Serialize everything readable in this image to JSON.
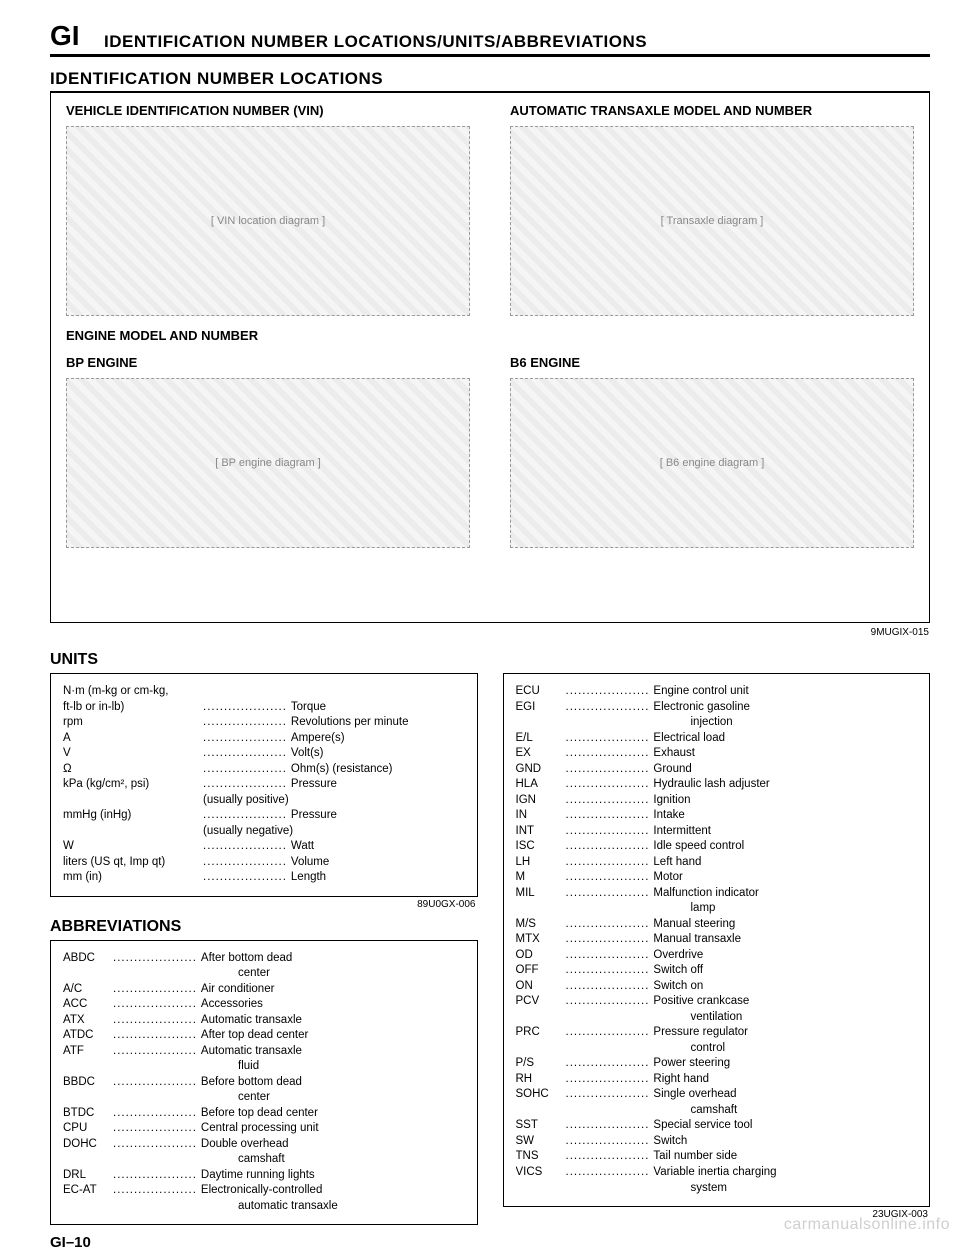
{
  "header": {
    "section_code": "GI",
    "title": "IDENTIFICATION NUMBER LOCATIONS/UNITS/ABBREVIATIONS",
    "subtitle": "IDENTIFICATION NUMBER LOCATIONS"
  },
  "diagram": {
    "vin_label": "VEHICLE IDENTIFICATION NUMBER (VIN)",
    "transaxle_label": "AUTOMATIC TRANSAXLE MODEL AND NUMBER",
    "engine_label": "ENGINE MODEL AND NUMBER",
    "bp_engine": "BP ENGINE",
    "b6_engine": "B6 ENGINE",
    "fig_code": "9MUGIX-015"
  },
  "units": {
    "title": "UNITS",
    "rows": [
      {
        "label": "N·m (m-kg or cm-kg,",
        "val": ""
      },
      {
        "label": "ft-lb or in-lb)",
        "val": "Torque"
      },
      {
        "label": "rpm",
        "val": "Revolutions per minute"
      },
      {
        "label": "A",
        "val": "Ampere(s)"
      },
      {
        "label": "V",
        "val": "Volt(s)"
      },
      {
        "label": "Ω",
        "val": "Ohm(s) (resistance)"
      },
      {
        "label": "kPa (kg/cm², psi)",
        "val": "Pressure"
      },
      {
        "cont": "(usually positive)"
      },
      {
        "label": "mmHg (inHg)",
        "val": "Pressure"
      },
      {
        "cont": "(usually negative)"
      },
      {
        "label": "W",
        "val": "Watt"
      },
      {
        "label": "liters (US qt, Imp qt)",
        "val": "Volume"
      },
      {
        "label": "mm (in)",
        "val": "Length"
      }
    ],
    "fig_code": "89U0GX-006"
  },
  "abbrev": {
    "title": "ABBREVIATIONS",
    "left": [
      {
        "label": "ABDC",
        "val": "After bottom dead"
      },
      {
        "cont": "center"
      },
      {
        "label": "A/C",
        "val": "Air conditioner"
      },
      {
        "label": "ACC",
        "val": "Accessories"
      },
      {
        "label": "ATX",
        "val": "Automatic transaxle"
      },
      {
        "label": "ATDC",
        "val": "After top dead center"
      },
      {
        "label": "ATF",
        "val": "Automatic transaxle"
      },
      {
        "cont": "fluid"
      },
      {
        "label": "BBDC",
        "val": "Before bottom dead"
      },
      {
        "cont": "center"
      },
      {
        "label": "BTDC",
        "val": "Before top dead center"
      },
      {
        "label": "CPU",
        "val": "Central processing unit"
      },
      {
        "label": "DOHC",
        "val": "Double overhead"
      },
      {
        "cont": "camshaft"
      },
      {
        "label": "DRL",
        "val": "Daytime running lights"
      },
      {
        "label": "EC-AT",
        "val": "Electronically-controlled"
      },
      {
        "cont": "automatic transaxle"
      }
    ],
    "right": [
      {
        "label": "ECU",
        "val": "Engine control unit"
      },
      {
        "label": "EGI",
        "val": "Electronic gasoline"
      },
      {
        "cont": "injection"
      },
      {
        "label": "E/L",
        "val": "Electrical load"
      },
      {
        "label": "EX",
        "val": "Exhaust"
      },
      {
        "label": "GND",
        "val": "Ground"
      },
      {
        "label": "HLA",
        "val": "Hydraulic lash adjuster"
      },
      {
        "label": "IGN",
        "val": "Ignition"
      },
      {
        "label": "IN",
        "val": "Intake"
      },
      {
        "label": "INT",
        "val": "Intermittent"
      },
      {
        "label": "ISC",
        "val": "Idle speed control"
      },
      {
        "label": "LH",
        "val": "Left hand"
      },
      {
        "label": "M",
        "val": "Motor"
      },
      {
        "label": "MIL",
        "val": "Malfunction indicator"
      },
      {
        "cont": "lamp"
      },
      {
        "label": "M/S",
        "val": "Manual steering"
      },
      {
        "label": "MTX",
        "val": "Manual transaxle"
      },
      {
        "label": "OD",
        "val": "Overdrive"
      },
      {
        "label": "OFF",
        "val": "Switch off"
      },
      {
        "label": "ON",
        "val": "Switch on"
      },
      {
        "label": "PCV",
        "val": "Positive crankcase"
      },
      {
        "cont": "ventilation"
      },
      {
        "label": "PRC",
        "val": "Pressure regulator"
      },
      {
        "cont": "control"
      },
      {
        "label": "P/S",
        "val": "Power steering"
      },
      {
        "label": "RH",
        "val": "Right hand"
      },
      {
        "label": "SOHC",
        "val": "Single overhead"
      },
      {
        "cont": "camshaft"
      },
      {
        "label": "SST",
        "val": "Special service tool"
      },
      {
        "label": "SW",
        "val": "Switch"
      },
      {
        "label": "TNS",
        "val": "Tail number side"
      },
      {
        "label": "VICS",
        "val": "Variable inertia charging"
      },
      {
        "cont": "system"
      }
    ],
    "fig_code": "23UGIX-003"
  },
  "footer": {
    "page_number": "GI–10",
    "url": "carmanualsonline.info"
  }
}
